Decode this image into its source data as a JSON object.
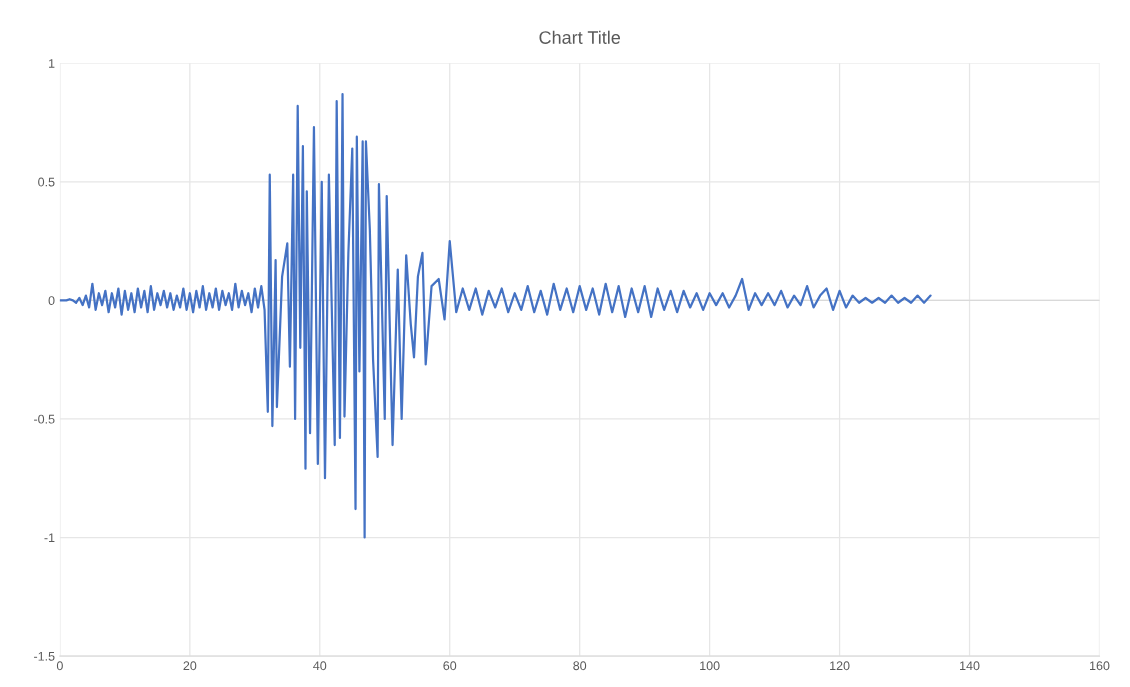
{
  "chart_data": {
    "type": "line",
    "title": "Chart Title",
    "x": [
      0,
      0.5,
      1,
      1.5,
      2,
      2.5,
      3,
      3.5,
      4,
      4.5,
      5,
      5.5,
      6,
      6.5,
      7,
      7.5,
      8,
      8.5,
      9,
      9.5,
      10,
      10.5,
      11,
      11.5,
      12,
      12.5,
      13,
      13.5,
      14,
      14.5,
      15,
      15.5,
      16,
      16.5,
      17,
      17.5,
      18,
      18.5,
      19,
      19.5,
      20,
      20.5,
      21,
      21.5,
      22,
      22.5,
      23,
      23.5,
      24,
      24.5,
      25,
      25.5,
      26,
      26.5,
      27,
      27.5,
      28,
      28.5,
      29,
      29.5,
      30,
      30.5,
      31,
      31.5,
      32.0,
      32.3,
      32.7,
      33.2,
      33.4,
      34.2,
      35.0,
      35.4,
      35.9,
      36.2,
      36.6,
      37.0,
      37.4,
      37.8,
      38.0,
      38.5,
      39.1,
      39.7,
      40.3,
      40.8,
      41.4,
      42.3,
      42.6,
      43.1,
      43.5,
      43.8,
      44.4,
      45.0,
      45.5,
      45.7,
      46.1,
      46.6,
      46.9,
      47.1,
      47.7,
      48.2,
      48.9,
      49.1,
      50.0,
      50.3,
      51.2,
      52.0,
      52.6,
      53.3,
      54.0,
      54.5,
      55.1,
      55.8,
      56.3,
      57.2,
      58.3,
      59.2,
      60.0,
      61.0,
      62.0,
      63,
      64,
      65,
      66,
      67,
      68,
      69,
      70,
      71,
      72,
      73,
      74,
      75,
      76,
      77,
      78,
      79,
      80,
      81,
      82,
      83,
      84,
      85,
      86,
      87,
      88,
      89,
      90,
      91,
      92,
      93,
      94,
      95,
      96,
      97,
      98,
      99,
      100,
      101,
      102,
      103,
      104,
      105,
      106,
      107,
      108,
      109,
      110,
      111,
      112,
      113,
      114,
      115,
      116,
      117,
      118,
      119,
      120,
      121,
      122,
      123,
      124,
      125,
      126,
      127,
      128,
      129,
      130,
      131,
      132,
      133,
      134
    ],
    "series": [
      {
        "color": "#4472c4",
        "values": [
          0,
          0,
          0,
          0.005,
          0,
          -0.01,
          0.01,
          -0.02,
          0.02,
          -0.03,
          0.07,
          -0.04,
          0.03,
          -0.02,
          0.04,
          -0.05,
          0.03,
          -0.03,
          0.05,
          -0.06,
          0.04,
          -0.04,
          0.03,
          -0.05,
          0.05,
          -0.03,
          0.04,
          -0.05,
          0.06,
          -0.04,
          0.03,
          -0.02,
          0.04,
          -0.03,
          0.03,
          -0.04,
          0.02,
          -0.03,
          0.05,
          -0.04,
          0.03,
          -0.05,
          0.04,
          -0.03,
          0.06,
          -0.04,
          0.03,
          -0.03,
          0.05,
          -0.04,
          0.04,
          -0.02,
          0.03,
          -0.04,
          0.07,
          -0.03,
          0.04,
          -0.02,
          0.03,
          -0.05,
          0.05,
          -0.03,
          0.06,
          -0.04,
          -0.47,
          0.53,
          -0.53,
          0.17,
          -0.45,
          0.1,
          0.24,
          -0.28,
          0.53,
          -0.5,
          0.82,
          -0.2,
          0.65,
          -0.71,
          0.46,
          -0.56,
          0.73,
          -0.69,
          0.5,
          -0.75,
          0.53,
          -0.61,
          0.84,
          -0.58,
          0.87,
          -0.49,
          0.2,
          0.64,
          -0.88,
          0.69,
          -0.3,
          0.67,
          -1.0,
          0.67,
          0.3,
          -0.25,
          -0.66,
          0.49,
          -0.5,
          0.44,
          -0.61,
          0.13,
          -0.5,
          0.19,
          -0.1,
          -0.24,
          0.1,
          0.2,
          -0.27,
          0.06,
          0.09,
          -0.08,
          0.25,
          -0.05,
          0.05,
          -0.04,
          0.05,
          -0.06,
          0.04,
          -0.03,
          0.05,
          -0.05,
          0.03,
          -0.04,
          0.06,
          -0.05,
          0.04,
          -0.06,
          0.07,
          -0.04,
          0.05,
          -0.05,
          0.06,
          -0.04,
          0.05,
          -0.06,
          0.07,
          -0.05,
          0.06,
          -0.07,
          0.05,
          -0.05,
          0.06,
          -0.07,
          0.05,
          -0.04,
          0.04,
          -0.05,
          0.04,
          -0.03,
          0.03,
          -0.04,
          0.03,
          -0.02,
          0.03,
          -0.03,
          0.02,
          0.09,
          -0.04,
          0.03,
          -0.02,
          0.03,
          -0.02,
          0.04,
          -0.03,
          0.02,
          -0.02,
          0.06,
          -0.03,
          0.02,
          0.05,
          -0.04,
          0.04,
          -0.03,
          0.02,
          -0.01,
          0.01,
          -0.01,
          0.01,
          -0.01,
          0.02,
          -0.01,
          0.01,
          -0.01,
          0.02,
          -0.01,
          0.02
        ]
      }
    ],
    "xlim": [
      0,
      160
    ],
    "xticks": [
      0,
      20,
      40,
      60,
      80,
      100,
      120,
      140,
      160
    ],
    "ylim": [
      -1.5,
      1
    ],
    "yticks": [
      -1.5,
      -1,
      -0.5,
      0,
      0.5,
      1
    ],
    "grid": true
  }
}
